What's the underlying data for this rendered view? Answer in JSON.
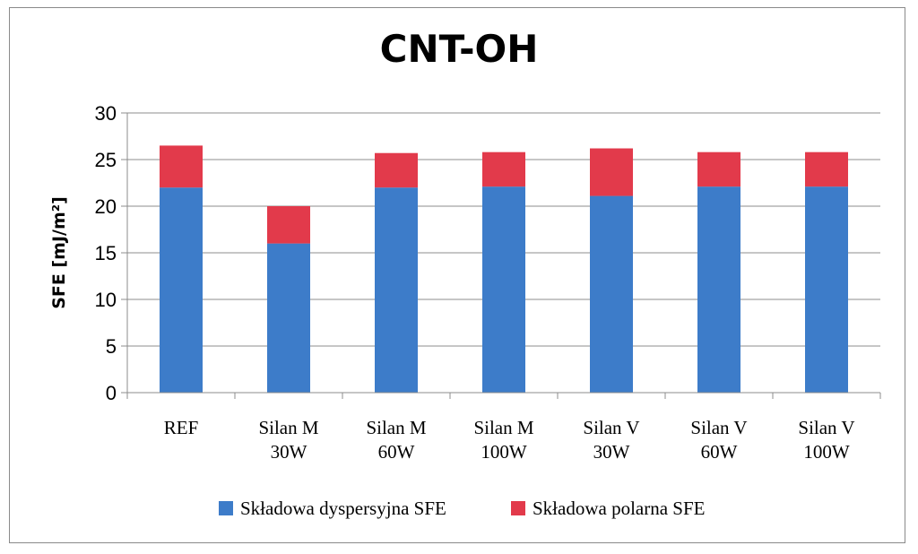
{
  "chart_data": {
    "type": "bar",
    "stacked": true,
    "title": "CNT-OH",
    "ylabel": "SFE [mJ/m²]",
    "xlabel": "",
    "ylim": [
      0,
      30
    ],
    "yticks": [
      0,
      5,
      10,
      15,
      20,
      25,
      30
    ],
    "grid": true,
    "legend_position": "bottom",
    "categories": [
      [
        "REF"
      ],
      [
        "Silan M",
        "30W"
      ],
      [
        "Silan M",
        "60W"
      ],
      [
        "Silan M",
        "100W"
      ],
      [
        "Silan V",
        "30W"
      ],
      [
        "Silan V",
        "60W"
      ],
      [
        "Silan V",
        "100W"
      ]
    ],
    "series": [
      {
        "name": "Składowa dyspersyjna SFE",
        "color": "#3d7cc9",
        "values": [
          22.0,
          16.0,
          22.0,
          22.1,
          21.1,
          22.1,
          22.1
        ]
      },
      {
        "name": "Składowa polarna SFE",
        "color": "#e23a4b",
        "values": [
          4.5,
          4.0,
          3.7,
          3.7,
          5.1,
          3.7,
          3.7
        ]
      }
    ]
  }
}
